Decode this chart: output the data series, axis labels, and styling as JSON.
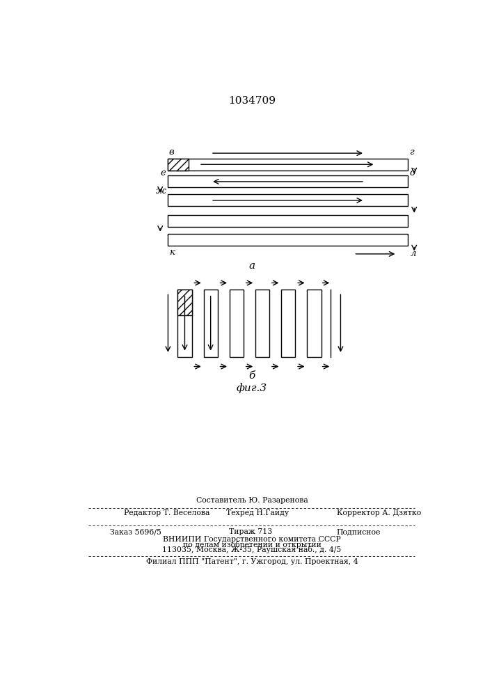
{
  "title": "1034709",
  "bg_color": "#ffffff",
  "fig_label_a": "a",
  "fig_label_b": "б",
  "fig_caption": "фиг.3",
  "labels_a": {
    "B": "в",
    "G": "г",
    "E": "е",
    "D": "д",
    "ZH": "ж",
    "K": "к",
    "L": "л"
  },
  "footer_line0": "Составитель Ю. Разаренова",
  "footer_line1_left": "Редактор Т. Веселова",
  "footer_line1_mid": "Техред Н.Гайду",
  "footer_line1_right": "Корректор А. Дзятко",
  "footer_line2_left": "Заказ 5696/5",
  "footer_line2_mid": "Тираж 713",
  "footer_line2_right": "Подписное",
  "footer_line3": "ВНИИПИ Государственного комитета СССР",
  "footer_line4": "по делам изобретений и открытий",
  "footer_line5": "113035, Москва, Ж-35, Раушская наб., д. 4/5",
  "footer_line6": "Филиал ППП \"Патент\", г. Ужгород, ул. Проектная, 4"
}
